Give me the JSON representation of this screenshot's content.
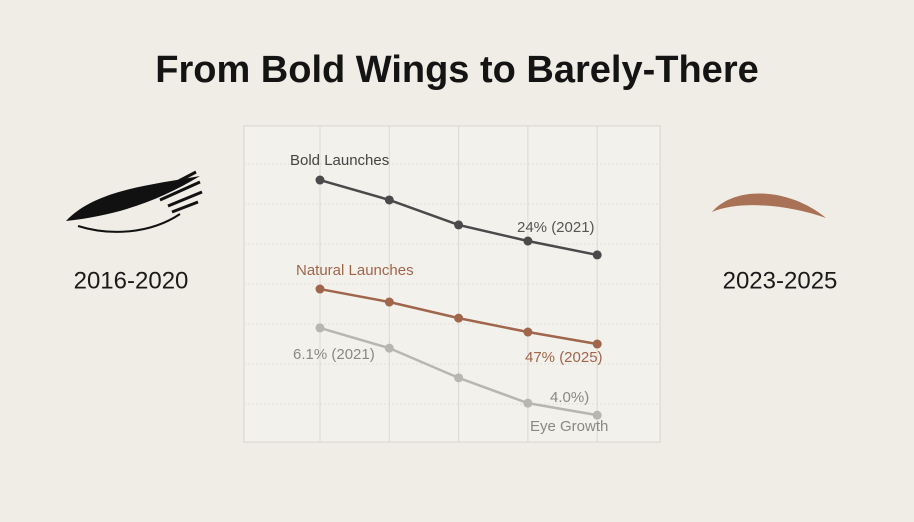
{
  "chart_data": {
    "type": "line",
    "title": "From Bold Wings to Barely-There",
    "left_label": "2016-2020",
    "right_label": "2023-2025",
    "categories": [
      null,
      null,
      null,
      null,
      null
    ],
    "series": [
      {
        "name": "Bold Launches",
        "color": "#4a4a4a",
        "values": [
          82.9,
          76.6,
          68.7,
          63.6,
          59.2
        ]
      },
      {
        "name": "Natural Launches",
        "color": "#a0664c",
        "values": [
          48.4,
          44.3,
          39.2,
          34.8,
          31.0
        ]
      },
      {
        "name": "Eye Growth",
        "color": "#b8b6b2",
        "values": [
          36.1,
          29.7,
          20.3,
          12.3,
          8.5
        ]
      }
    ],
    "annotations": [
      {
        "text": "24% (2021)",
        "series": 0,
        "color": "#555555"
      },
      {
        "text": "47% (2025)",
        "series": 1,
        "color": "#a0664c"
      },
      {
        "text": "6.1% (2021)",
        "series": 2,
        "color": "#8a8884"
      },
      {
        "text": "4.0%)",
        "series": 2,
        "color": "#8a8884"
      }
    ],
    "ylim": [
      0,
      100
    ],
    "grid": true
  }
}
